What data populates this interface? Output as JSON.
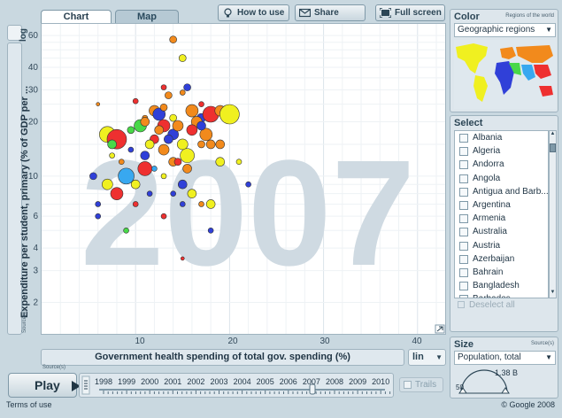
{
  "tabs": {
    "chart": "Chart",
    "map": "Map"
  },
  "toolbar": {
    "how_to_use": "How to use",
    "share_graph": "Share graph",
    "full_screen": "Full screen"
  },
  "y_axis": {
    "label": "Expenditure per student, primary (% of GDP per ...",
    "scale_button": "log",
    "source": "Source(s)",
    "ticks": [
      "60",
      "40",
      "30",
      "20",
      "10",
      "6",
      "4",
      "3",
      "2"
    ]
  },
  "x_axis": {
    "label": "Government health spending of total gov. spending (%)",
    "scale_button": "lin",
    "source": "Source(s)",
    "ticks": [
      "10",
      "20",
      "30",
      "40"
    ]
  },
  "watermark_year": "2007",
  "play": {
    "label": "Play"
  },
  "timeline": {
    "years": [
      "1998",
      "1999",
      "2000",
      "2001",
      "2002",
      "2003",
      "2004",
      "2005",
      "2006",
      "2007",
      "2008",
      "2009",
      "2010"
    ],
    "current": "2007"
  },
  "trails_label": "Trails",
  "color_panel": {
    "title": "Color",
    "subtitle": "Regions of the world",
    "selected": "Geographic regions"
  },
  "select_panel": {
    "title": "Select",
    "countries": [
      "Albania",
      "Algeria",
      "Andorra",
      "Angola",
      "Antigua and Barb...",
      "Argentina",
      "Armenia",
      "Australia",
      "Austria",
      "Azerbaijan",
      "Bahrain",
      "Bangladesh",
      "Barbados"
    ],
    "deselect_all": "Deselect all"
  },
  "size_panel": {
    "title": "Size",
    "source": "Source(s)",
    "selected": "Population, total",
    "gauge_min": "50",
    "gauge_max": "1.38 B"
  },
  "footer": {
    "terms": "Terms of use",
    "copyright": "© Google 2008"
  },
  "colors": {
    "yellow": "#f0f020",
    "orange": "#f28a1c",
    "red": "#ee3030",
    "blue": "#3040d8",
    "lightblue": "#38a8f0",
    "green": "#48d848"
  },
  "chart_data": {
    "type": "scatter",
    "x_scale": "linear",
    "y_scale": "log",
    "xlim": [
      0,
      42
    ],
    "ylim": [
      1.5,
      65
    ],
    "points": [
      [
        7,
        17,
        "yellow",
        9
      ],
      [
        8,
        16,
        "red",
        11
      ],
      [
        7.5,
        15,
        "green",
        5
      ],
      [
        8,
        8,
        "red",
        7
      ],
      [
        7,
        9,
        "yellow",
        6
      ],
      [
        5.5,
        10,
        "blue",
        4
      ],
      [
        9.5,
        18,
        "green",
        4
      ],
      [
        10.5,
        19,
        "green",
        7
      ],
      [
        11,
        13,
        "blue",
        5
      ],
      [
        11,
        11,
        "red",
        8
      ],
      [
        10,
        9,
        "yellow",
        5
      ],
      [
        9,
        10,
        "lightblue",
        9
      ],
      [
        12,
        23,
        "orange",
        6
      ],
      [
        12.5,
        22,
        "blue",
        7
      ],
      [
        13,
        19,
        "red",
        7
      ],
      [
        14,
        17,
        "blue",
        6
      ],
      [
        15,
        15,
        "yellow",
        6
      ],
      [
        15.5,
        13,
        "yellow",
        8
      ],
      [
        13.5,
        28,
        "orange",
        4
      ],
      [
        13,
        31,
        "red",
        3
      ],
      [
        14,
        57,
        "orange",
        4
      ],
      [
        15,
        45,
        "yellow",
        4
      ],
      [
        15.5,
        31,
        "blue",
        4
      ],
      [
        16,
        23,
        "orange",
        7
      ],
      [
        17,
        21,
        "blue",
        5
      ],
      [
        18,
        22,
        "red",
        9
      ],
      [
        19,
        23,
        "orange",
        6
      ],
      [
        20,
        22,
        "yellow",
        11
      ],
      [
        17.5,
        17,
        "orange",
        7
      ],
      [
        18,
        15,
        "orange",
        5
      ],
      [
        16.5,
        20,
        "orange",
        6
      ],
      [
        14.5,
        19,
        "orange",
        6
      ],
      [
        12,
        16,
        "red",
        5
      ],
      [
        11.5,
        15,
        "yellow",
        5
      ],
      [
        13,
        14,
        "orange",
        6
      ],
      [
        14,
        12,
        "orange",
        5
      ],
      [
        15,
        9,
        "blue",
        5
      ],
      [
        16,
        8,
        "yellow",
        5
      ],
      [
        15.5,
        11,
        "orange",
        5
      ],
      [
        14.5,
        12,
        "red",
        4
      ],
      [
        19,
        15,
        "orange",
        5
      ],
      [
        21,
        12,
        "yellow",
        3
      ],
      [
        22,
        9,
        "blue",
        3
      ],
      [
        19,
        12,
        "yellow",
        5
      ],
      [
        18,
        7,
        "yellow",
        5
      ],
      [
        17,
        7,
        "orange",
        3
      ],
      [
        13,
        6,
        "red",
        3
      ],
      [
        9,
        5,
        "green",
        3
      ],
      [
        18,
        5,
        "blue",
        3
      ],
      [
        15,
        3.5,
        "red",
        2
      ],
      [
        6,
        25,
        "orange",
        2
      ],
      [
        10,
        26,
        "red",
        3
      ],
      [
        11,
        21,
        "orange",
        3
      ],
      [
        12.5,
        18,
        "orange",
        5
      ],
      [
        16,
        18,
        "red",
        6
      ],
      [
        17,
        19,
        "blue",
        5
      ],
      [
        14,
        21,
        "yellow",
        4
      ],
      [
        13.5,
        16,
        "blue",
        5
      ],
      [
        12,
        11,
        "lightblue",
        3
      ],
      [
        13,
        10,
        "yellow",
        3
      ],
      [
        11.5,
        8,
        "blue",
        3
      ],
      [
        14,
        8,
        "blue",
        3
      ],
      [
        15,
        7,
        "blue",
        3
      ],
      [
        17,
        15,
        "orange",
        4
      ],
      [
        13,
        24,
        "orange",
        4
      ],
      [
        15,
        29,
        "orange",
        3
      ],
      [
        17,
        25,
        "red",
        3
      ],
      [
        11,
        20,
        "orange",
        5
      ],
      [
        9.5,
        14,
        "blue",
        3
      ],
      [
        7.5,
        13,
        "yellow",
        3
      ],
      [
        8.5,
        12,
        "orange",
        3
      ],
      [
        6,
        7,
        "blue",
        3
      ],
      [
        6,
        6,
        "blue",
        3
      ],
      [
        10,
        7,
        "red",
        3
      ]
    ]
  }
}
